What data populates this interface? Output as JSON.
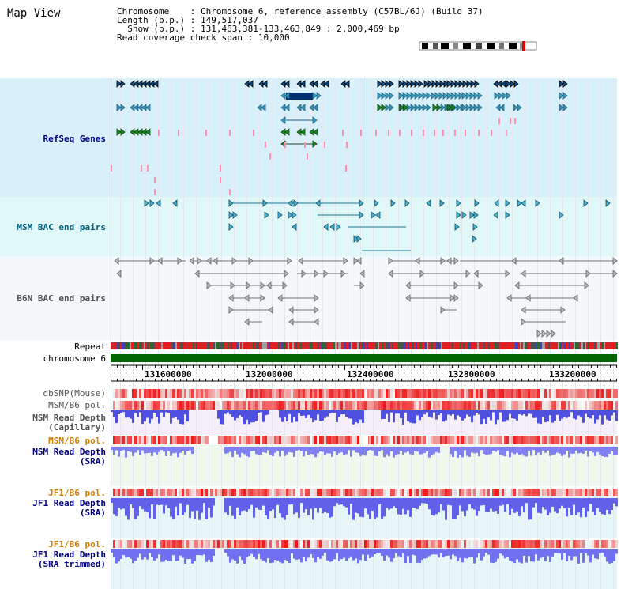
{
  "title": "Map View",
  "info": {
    "chromosome_label": "Chromosome",
    "chromosome_value": "Chromosome 6, reference assembly (C57BL/6J) (Build 37)",
    "length_label": "Length (b.p.)",
    "length_value": "149,517,037",
    "show_label": "Show (b.p.)",
    "show_value": "131,463,381-133,463,849 : 2,000,469 bp",
    "coverage_label": "Read coverage check span",
    "coverage_value": "10,000"
  },
  "tracks": {
    "refseq": "RefSeq Genes",
    "msm_bac": "MSM BAC end pairs",
    "b6n_bac": "B6N BAC end pairs",
    "repeat": "Repeat",
    "chromosome": "chromosome 6",
    "dbsnp": "dbSNP(Mouse)",
    "msm_b6_pol_1": "MSM/B6 pol.",
    "msm_read_depth_cap_1": "MSM Read Depth",
    "msm_read_depth_cap_2": "(Capillary)",
    "msm_b6_pol_2": "MSM/B6 pol.",
    "msm_read_depth_sra_1": "MSM Read Depth",
    "msm_read_depth_sra_2": "(SRA)",
    "jf1_b6_pol_1": "JF1/B6 pol.",
    "jf1_read_depth_1": "JF1 Read Depth",
    "jf1_read_depth_2": "(SRA)",
    "jf1_b6_pol_2": "JF1/B6 pol.",
    "jf1_read_depth_trim_1": "JF1 Read Depth",
    "jf1_read_depth_trim_2": "(SRA trimmed)"
  },
  "axis_ticks": [
    "131600000",
    "132000000",
    "132400000",
    "132800000",
    "133200000"
  ],
  "colors": {
    "blue_label": "#000080",
    "teal_label": "#006080",
    "gray_label": "#505050",
    "orange_label": "#d08000",
    "refseq_bg": "#d8f0fa",
    "msm_bg": "#e0f8f8",
    "b6n_bg": "#f4f8fa",
    "chromosome_bar": "#006400"
  }
}
